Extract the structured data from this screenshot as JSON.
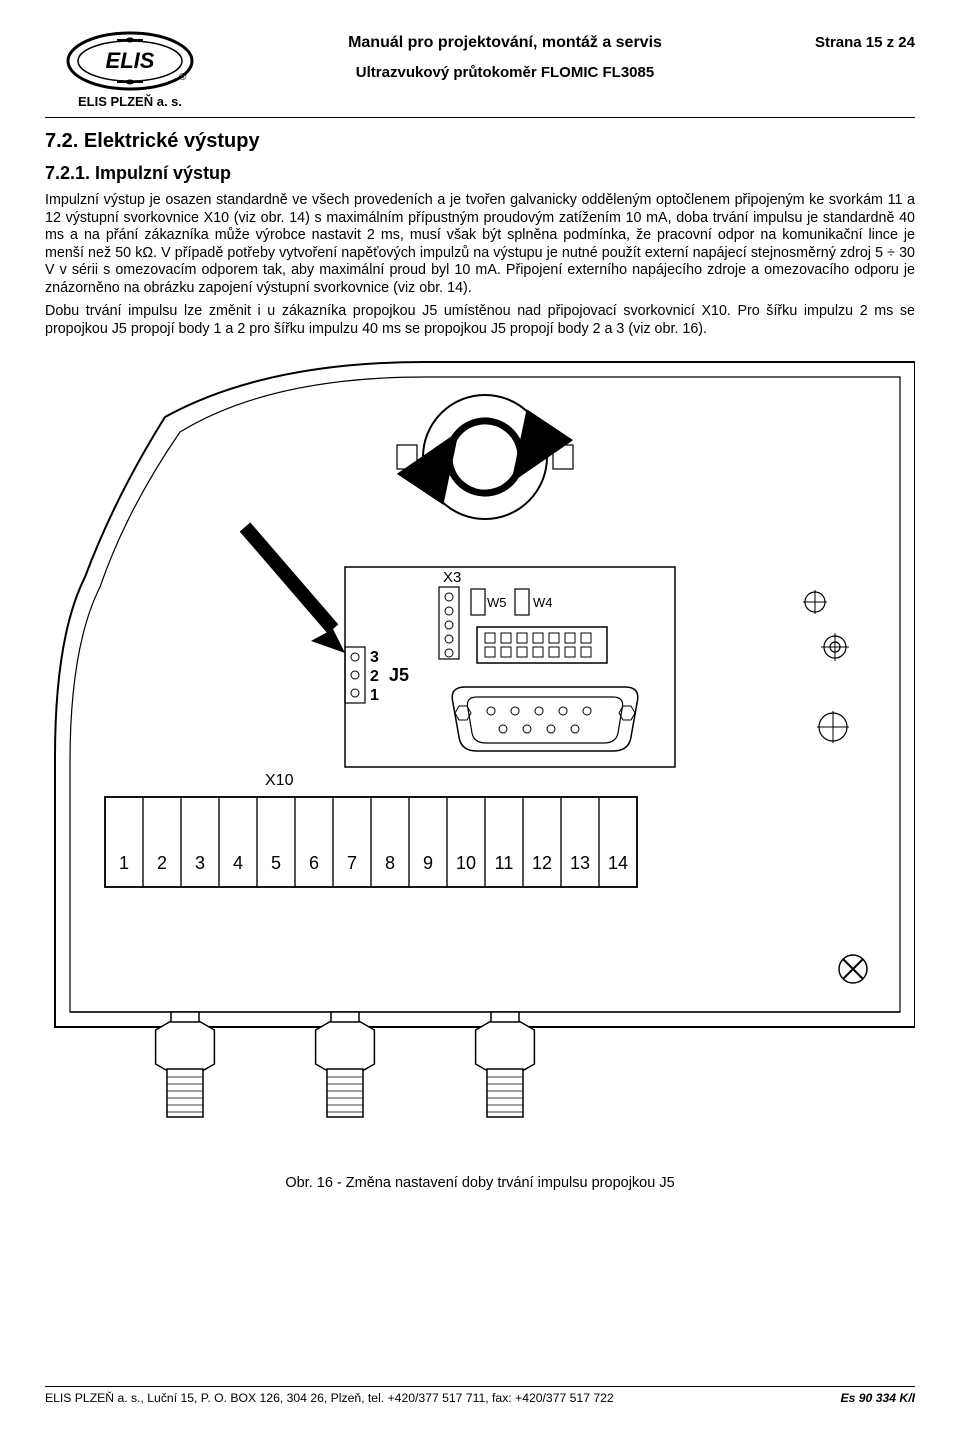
{
  "header": {
    "company": "ELIS PLZEŇ a. s.",
    "logo_text": "ELIS",
    "logo_reg": "®",
    "manual_title": "Manuál pro projektování, montáž a servis",
    "subtitle": "Ultrazvukový průtokoměr FLOMIC FL3085",
    "page_label": "Strana 15 z 24"
  },
  "content": {
    "section_h": "7.2. Elektrické výstupy",
    "subsection_h": "7.2.1. Impulzní výstup",
    "para1": "Impulzní výstup je osazen standardně ve všech provedeních a je tvořen galvanicky odděleným optočlenem připojeným ke svorkám 11 a 12 výstupní svorkovnice X10 (viz obr. 14) s maximálním přípustným proudovým zatížením 10 mA, doba trvání impulsu je standardně 40 ms a na přání zákazníka může výrobce nastavit 2 ms, musí však být splněna podmínka, že pracovní odpor na komunikační lince je menší než 50 kΩ. V případě potřeby vytvoření napěťových impulzů na výstupu je nutné použít externí napájecí stejnosměrný zdroj 5 ÷ 30 V v sérii s omezovacím odporem tak, aby maximální proud byl 10 mA. Připojení externího napájecího zdroje a omezovacího odporu je znázorněno na obrázku zapojení výstupní svorkovnice (viz obr. 14).",
    "para2": "Dobu trvání impulsu lze změnit i u zákazníka propojkou J5 umístěnou nad připojovací svorkovnicí X10. Pro šířku impulzu 2 ms se propojkou J5 propojí body 1 a 2 pro šířku impulzu 40 ms se propojkou J5 propojí body 2 a 3 (viz obr. 16)."
  },
  "figure": {
    "labels": {
      "X10": "X10",
      "X3": "X3",
      "W5": "W5",
      "W4": "W4",
      "J5": "J5",
      "j5_pins": [
        "3",
        "2",
        "1"
      ],
      "terminals": [
        "1",
        "2",
        "3",
        "4",
        "5",
        "6",
        "7",
        "8",
        "9",
        "10",
        "11",
        "12",
        "13",
        "14"
      ]
    },
    "caption": "Obr. 16 - Změna nastavení doby trvání impulsu propojkou J5"
  },
  "footer": {
    "left": "ELIS PLZEŇ a. s., Luční 15, P. O. BOX 126, 304 26, Plzeň, tel. +420/377 517 711, fax: +420/377 517 722",
    "right": "Es 90 334 K/I"
  },
  "colors": {
    "stroke": "#000000",
    "bg": "#ffffff"
  }
}
